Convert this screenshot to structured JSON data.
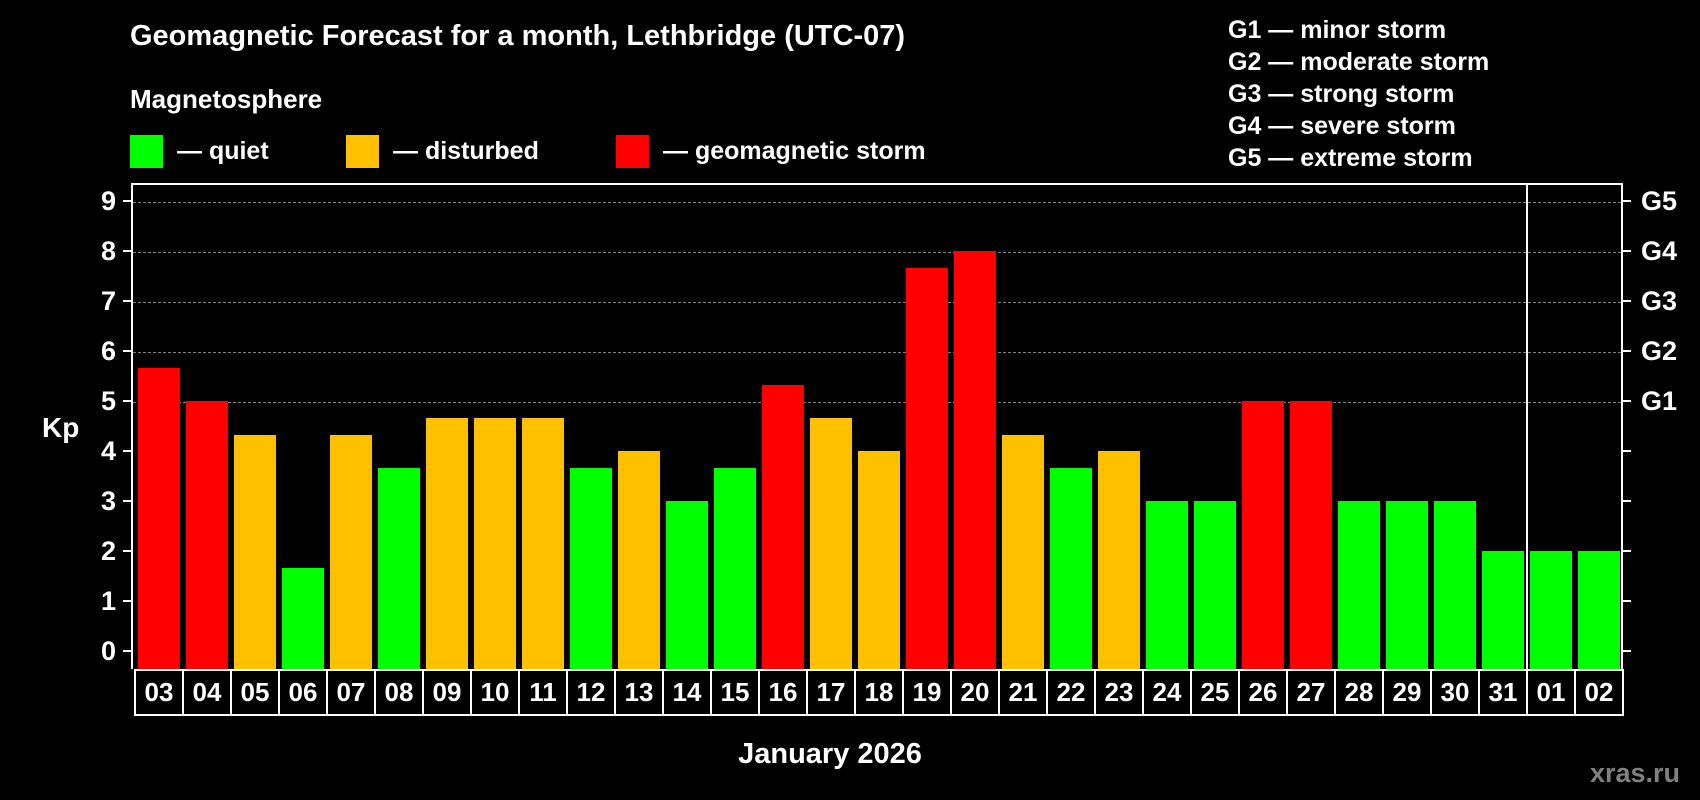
{
  "header": {
    "title": "Geomagnetic Forecast for a month, Lethbridge (UTC-07)",
    "subtitle": "Magnetosphere"
  },
  "legend": [
    {
      "label": "— quiet",
      "color": "#00ff00"
    },
    {
      "label": "— disturbed",
      "color": "#ffc000"
    },
    {
      "label": "— geomagnetic storm",
      "color": "#ff0000"
    }
  ],
  "g_legend": [
    "G1 — minor storm",
    "G2 — moderate storm",
    "G3 — strong storm",
    "G4 — severe storm",
    "G5 — extreme storm"
  ],
  "axis": {
    "ylabel": "Kp",
    "xlabel": "January 2026",
    "yticks": [
      "0",
      "1",
      "2",
      "3",
      "4",
      "5",
      "6",
      "7",
      "8",
      "9"
    ],
    "g_ticks": [
      {
        "value": 5,
        "label": "G1"
      },
      {
        "value": 6,
        "label": "G2"
      },
      {
        "value": 7,
        "label": "G3"
      },
      {
        "value": 8,
        "label": "G4"
      },
      {
        "value": 9,
        "label": "G5"
      }
    ]
  },
  "watermark": "xras.ru",
  "chart_data": {
    "type": "bar",
    "title": "Geomagnetic Forecast for a month, Lethbridge (UTC-07)",
    "subtitle": "Magnetosphere",
    "xlabel": "January 2026",
    "ylabel": "Kp",
    "ylim": [
      0,
      9
    ],
    "grid": "horizontal dashed at Kp 5-9",
    "categories": [
      "03",
      "04",
      "05",
      "06",
      "07",
      "08",
      "09",
      "10",
      "11",
      "12",
      "13",
      "14",
      "15",
      "16",
      "17",
      "18",
      "19",
      "20",
      "21",
      "22",
      "23",
      "24",
      "25",
      "26",
      "27",
      "28",
      "29",
      "30",
      "31",
      "01",
      "02"
    ],
    "values": [
      5.67,
      5.0,
      4.33,
      1.67,
      4.33,
      3.67,
      4.67,
      4.67,
      4.67,
      3.67,
      4.0,
      3.0,
      3.67,
      5.33,
      4.67,
      4.0,
      7.67,
      8.0,
      4.33,
      3.67,
      4.0,
      3.0,
      3.0,
      5.0,
      5.0,
      3.0,
      3.0,
      3.0,
      2.0,
      2.0,
      2.0
    ],
    "levels": [
      "storm",
      "storm",
      "disturbed",
      "quiet",
      "disturbed",
      "quiet",
      "disturbed",
      "disturbed",
      "disturbed",
      "quiet",
      "disturbed",
      "quiet",
      "quiet",
      "storm",
      "disturbed",
      "disturbed",
      "storm",
      "storm",
      "disturbed",
      "quiet",
      "disturbed",
      "quiet",
      "quiet",
      "storm",
      "storm",
      "quiet",
      "quiet",
      "quiet",
      "quiet",
      "quiet",
      "quiet"
    ],
    "colors": {
      "quiet": "#00ff00",
      "disturbed": "#ffc000",
      "storm": "#ff0000"
    },
    "legend": [
      "quiet",
      "disturbed",
      "geomagnetic storm"
    ],
    "secondary_yaxis": {
      "5": "G1",
      "6": "G2",
      "7": "G3",
      "8": "G4",
      "9": "G5"
    },
    "month_separator_before": "01"
  }
}
